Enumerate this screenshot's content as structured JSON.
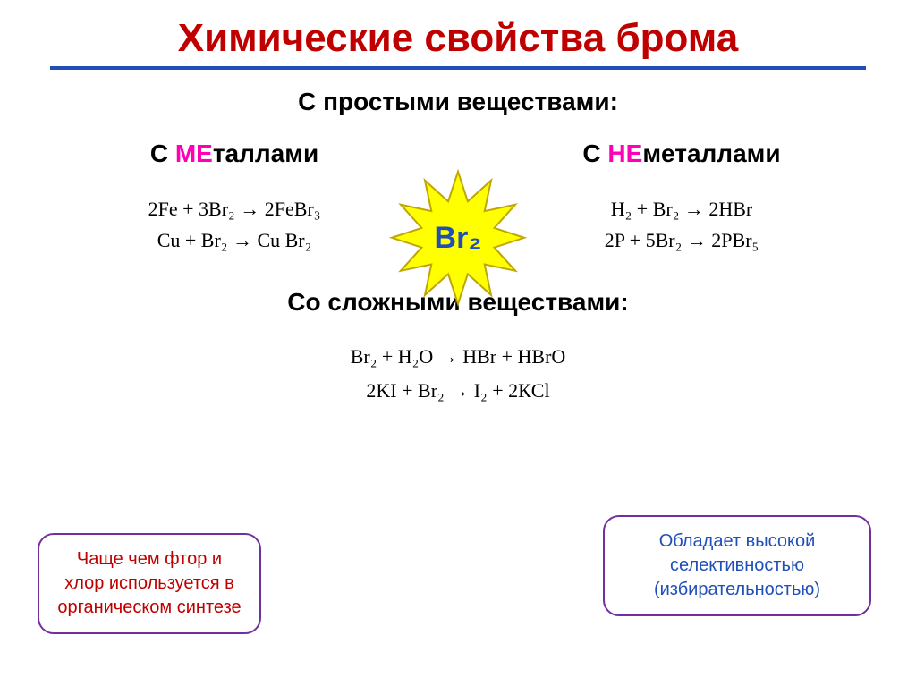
{
  "title": "Химические свойства брома",
  "section1": "С простыми веществами:",
  "left": {
    "heading_prefix": "С ",
    "heading_accent": "МЕ",
    "heading_suffix": "таллами",
    "eq1": "2Fe + 3Br₂  →  2FeBr₃",
    "eq2": "Cu  + Br₂  → Cu Br₂"
  },
  "right": {
    "heading_prefix": "С ",
    "heading_accent": "НЕ",
    "heading_suffix": "металлами",
    "eq1": "H₂ +  Br₂ → 2HBr",
    "eq2": "2P  + 5Br₂ → 2PBr₅"
  },
  "star_label": "Br₂",
  "section2": "Со сложными веществами:",
  "complex": {
    "eq1": "Br₂  + H₂O → HBr + HBrO",
    "eq2": "2KI    +  Br₂   →   I₂  +  2КCl"
  },
  "note_left": "Чаще чем фтор и хлор используется в органическом синтезе",
  "note_right": "Обладает высокой селективностью (избирательностью)",
  "colors": {
    "title": "#c00000",
    "rule": "#1f4fb8",
    "accent": "#ff00b6",
    "star_fill": "#ffff00",
    "star_stroke": "#bfa600",
    "note_border": "#7030a0",
    "note_left_text": "#c00000",
    "note_right_text": "#1f4fb8",
    "background": "#ffffff"
  },
  "star": {
    "points": 12,
    "outer_r": 74,
    "inner_r": 42
  }
}
